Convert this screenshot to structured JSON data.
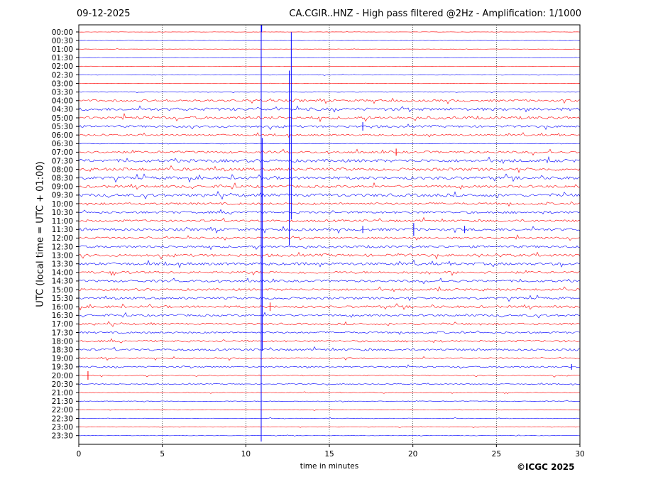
{
  "header": {
    "date": "09-12-2025",
    "title": "CA.CGIR..HNZ - High pass filtered @2Hz - Amplification: 1/1000"
  },
  "footer": {
    "copyright": "©ICGC 2025"
  },
  "chart_data": {
    "type": "line",
    "title": "CA.CGIR..HNZ - High pass filtered @2Hz - Amplification: 1/1000",
    "xlabel": "time in minutes",
    "ylabel": "UTC (local time = UTC + 01:00)",
    "xlim": [
      0,
      30
    ],
    "x_ticks": [
      "0",
      "5",
      "10",
      "15",
      "20",
      "25",
      "30"
    ],
    "x_tick_values": [
      0,
      5,
      10,
      15,
      20,
      25,
      30
    ],
    "vertical_grid": "dotted at every 5 minutes",
    "row_labels": [
      "00:00",
      "00:30",
      "01:00",
      "01:30",
      "02:00",
      "02:30",
      "03:00",
      "03:30",
      "04:00",
      "04:30",
      "05:00",
      "05:30",
      "06:00",
      "06:30",
      "07:00",
      "07:30",
      "08:00",
      "08:30",
      "09:00",
      "09:30",
      "10:00",
      "10:30",
      "11:00",
      "11:30",
      "12:00",
      "12:30",
      "13:00",
      "13:30",
      "14:00",
      "14:30",
      "15:00",
      "15:30",
      "16:00",
      "16:30",
      "17:00",
      "17:30",
      "18:00",
      "18:30",
      "19:00",
      "19:30",
      "20:00",
      "20:30",
      "21:00",
      "21:30",
      "22:00",
      "22:30",
      "23:00",
      "23:30"
    ],
    "trace_colors": [
      "#ff0000",
      "#0000ff"
    ],
    "noise_level": [
      0.2,
      0.2,
      0.2,
      0.2,
      0.2,
      0.4,
      0.2,
      0.3,
      1.5,
      2.0,
      2.0,
      1.5,
      1.2,
      0.3,
      1.6,
      2.0,
      2.0,
      2.0,
      1.8,
      2.0,
      1.5,
      1.5,
      1.6,
      1.8,
      1.5,
      1.6,
      1.8,
      1.8,
      1.6,
      1.5,
      1.5,
      1.5,
      1.6,
      1.4,
      1.3,
      1.2,
      1.3,
      1.4,
      1.0,
      1.0,
      0.8,
      0.6,
      0.5,
      0.5,
      0.4,
      0.4,
      0.3,
      0.3
    ],
    "events": [
      {
        "row": 0,
        "minute": 10.95,
        "up": 50,
        "down": 0,
        "color": "#0000ff"
      },
      {
        "row": 1,
        "minute": 10.92,
        "up": 30,
        "down": 565,
        "color": "#0000ff"
      },
      {
        "row": 2,
        "minute": 12.72,
        "up": 24,
        "down": 240,
        "color": "#0000ff"
      },
      {
        "row": 5,
        "minute": 12.6,
        "up": 6,
        "down": 240,
        "color": "#0000ff"
      },
      {
        "row": 14,
        "minute": 10.98,
        "up": 20,
        "down": 280,
        "color": "#0000ff"
      },
      {
        "row": 11,
        "minute": 17.0,
        "up": 6,
        "down": 6,
        "color": "#0000ff"
      },
      {
        "row": 14,
        "minute": 19.0,
        "up": 5,
        "down": 5,
        "color": "#ff0000"
      },
      {
        "row": 23,
        "minute": 17.0,
        "up": 5,
        "down": 5,
        "color": "#0000ff"
      },
      {
        "row": 23,
        "minute": 20.05,
        "up": 9,
        "down": 9,
        "color": "#0000ff"
      },
      {
        "row": 23,
        "minute": 23.1,
        "up": 5,
        "down": 5,
        "color": "#0000ff"
      },
      {
        "row": 32,
        "minute": 11.45,
        "up": 6,
        "down": 6,
        "color": "#ff0000"
      },
      {
        "row": 40,
        "minute": 0.55,
        "up": 6,
        "down": 6,
        "color": "#ff0000"
      },
      {
        "row": 39,
        "minute": 29.5,
        "up": 4,
        "down": 4,
        "color": "#0000ff"
      }
    ]
  }
}
